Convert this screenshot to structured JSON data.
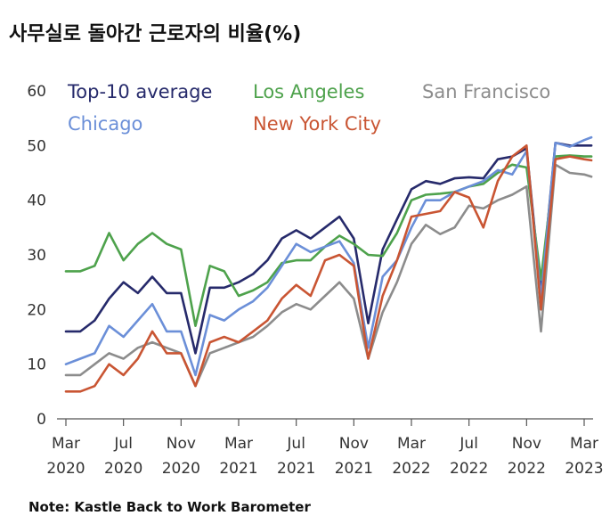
{
  "title": "사무실로 돌아간 근로자의 비율(%)",
  "note": "Note: Kastle Back to Work Barometer",
  "chart_data": {
    "type": "line",
    "title": "사무실로 돌아간 근로자의 비율(%)",
    "xlabel": "",
    "ylabel": "",
    "ylim": [
      0,
      60
    ],
    "yticks": [
      "0",
      "10",
      "20",
      "30",
      "40",
      "50",
      "60"
    ],
    "xticks": [
      {
        "line1": "Mar",
        "line2": "2020",
        "index": 0
      },
      {
        "line1": "Jul",
        "line2": "2020",
        "index": 4
      },
      {
        "line1": "Nov",
        "line2": "2020",
        "index": 8
      },
      {
        "line1": "Mar",
        "line2": "2021",
        "index": 12
      },
      {
        "line1": "Jul",
        "line2": "2021",
        "index": 16
      },
      {
        "line1": "Nov",
        "line2": "2021",
        "index": 20
      },
      {
        "line1": "Mar",
        "line2": "2022",
        "index": 24
      },
      {
        "line1": "Jul",
        "line2": "2022",
        "index": 28
      },
      {
        "line1": "Nov",
        "line2": "2022",
        "index": 32
      },
      {
        "line1": "Mar",
        "line2": "2023",
        "index": 36
      }
    ],
    "x_index_max": 36,
    "series": [
      {
        "name": "Top-10 average",
        "color": "#262a6b",
        "points": [
          [
            0,
            16
          ],
          [
            1,
            16
          ],
          [
            2,
            18
          ],
          [
            3,
            22
          ],
          [
            4,
            25
          ],
          [
            5,
            23
          ],
          [
            6,
            26
          ],
          [
            7,
            23
          ],
          [
            8,
            23
          ],
          [
            9,
            12
          ],
          [
            10,
            24
          ],
          [
            11,
            24
          ],
          [
            12,
            25
          ],
          [
            13,
            26.5
          ],
          [
            14,
            29
          ],
          [
            15,
            33
          ],
          [
            16,
            34.5
          ],
          [
            17,
            33
          ],
          [
            18,
            35
          ],
          [
            19,
            37
          ],
          [
            20,
            33
          ],
          [
            21,
            17.5
          ],
          [
            22,
            31
          ],
          [
            23,
            36.5
          ],
          [
            24,
            42
          ],
          [
            25,
            43.5
          ],
          [
            26,
            43
          ],
          [
            27,
            44
          ],
          [
            28,
            44.2
          ],
          [
            29,
            44
          ],
          [
            30,
            47.5
          ],
          [
            31,
            48
          ],
          [
            32,
            49.5
          ],
          [
            33,
            23
          ],
          [
            34,
            50.5
          ],
          [
            35,
            50
          ],
          [
            36,
            50
          ],
          [
            36.5,
            50
          ]
        ]
      },
      {
        "name": "Los Angeles",
        "color": "#4ea24c",
        "points": [
          [
            0,
            27
          ],
          [
            1,
            27
          ],
          [
            2,
            28
          ],
          [
            3,
            34
          ],
          [
            4,
            29
          ],
          [
            5,
            32
          ],
          [
            6,
            34
          ],
          [
            7,
            32
          ],
          [
            8,
            31
          ],
          [
            9,
            17
          ],
          [
            10,
            28
          ],
          [
            11,
            27
          ],
          [
            12,
            22.5
          ],
          [
            13,
            23.5
          ],
          [
            14,
            25
          ],
          [
            15,
            28.5
          ],
          [
            16,
            29
          ],
          [
            17,
            29
          ],
          [
            18,
            31.5
          ],
          [
            19,
            33.5
          ],
          [
            20,
            32
          ],
          [
            21,
            30
          ],
          [
            22,
            29.8
          ],
          [
            23,
            34
          ],
          [
            24,
            40
          ],
          [
            25,
            41
          ],
          [
            26,
            41.2
          ],
          [
            27,
            41.5
          ],
          [
            28,
            42.5
          ],
          [
            29,
            43
          ],
          [
            30,
            45
          ],
          [
            31,
            46.5
          ],
          [
            32,
            46
          ],
          [
            33,
            25.5
          ],
          [
            34,
            48
          ],
          [
            35,
            48.2
          ],
          [
            36,
            48
          ],
          [
            36.5,
            48
          ]
        ]
      },
      {
        "name": "San Francisco",
        "color": "#8c8c8c",
        "points": [
          [
            0,
            8
          ],
          [
            1,
            8
          ],
          [
            2,
            10
          ],
          [
            3,
            12
          ],
          [
            4,
            11
          ],
          [
            5,
            13
          ],
          [
            6,
            14
          ],
          [
            7,
            13
          ],
          [
            8,
            12
          ],
          [
            9,
            6
          ],
          [
            10,
            12
          ],
          [
            11,
            13
          ],
          [
            12,
            14
          ],
          [
            13,
            15
          ],
          [
            14,
            17
          ],
          [
            15,
            19.5
          ],
          [
            16,
            21
          ],
          [
            17,
            20
          ],
          [
            18,
            22.5
          ],
          [
            19,
            25
          ],
          [
            20,
            22
          ],
          [
            21,
            11
          ],
          [
            22,
            19.5
          ],
          [
            23,
            25
          ],
          [
            24,
            32
          ],
          [
            25,
            35.5
          ],
          [
            26,
            33.8
          ],
          [
            27,
            35
          ],
          [
            28,
            39
          ],
          [
            29,
            38.5
          ],
          [
            30,
            40
          ],
          [
            31,
            41
          ],
          [
            32,
            42.5
          ],
          [
            33,
            16
          ],
          [
            34,
            46.5
          ],
          [
            35,
            45
          ],
          [
            36,
            44.7
          ],
          [
            36.5,
            44.3
          ]
        ]
      },
      {
        "name": "Chicago",
        "color": "#6b8fd8",
        "points": [
          [
            0,
            10
          ],
          [
            1,
            11
          ],
          [
            2,
            12
          ],
          [
            3,
            17
          ],
          [
            4,
            15
          ],
          [
            5,
            18
          ],
          [
            6,
            21
          ],
          [
            7,
            16
          ],
          [
            8,
            16
          ],
          [
            9,
            8
          ],
          [
            10,
            19
          ],
          [
            11,
            18
          ],
          [
            12,
            20
          ],
          [
            13,
            21.5
          ],
          [
            14,
            24
          ],
          [
            15,
            28
          ],
          [
            16,
            32
          ],
          [
            17,
            30.5
          ],
          [
            18,
            31.5
          ],
          [
            19,
            32.5
          ],
          [
            20,
            28.5
          ],
          [
            21,
            13
          ],
          [
            22,
            26
          ],
          [
            23,
            29
          ],
          [
            24,
            35
          ],
          [
            25,
            40
          ],
          [
            26,
            40
          ],
          [
            27,
            41.5
          ],
          [
            28,
            42.5
          ],
          [
            29,
            43.5
          ],
          [
            30,
            45.5
          ],
          [
            31,
            44.7
          ],
          [
            32,
            49
          ],
          [
            33,
            22
          ],
          [
            34,
            50.5
          ],
          [
            35,
            49.8
          ],
          [
            36,
            51
          ],
          [
            36.5,
            51.5
          ]
        ]
      },
      {
        "name": "New York City",
        "color": "#c95533",
        "points": [
          [
            0,
            5
          ],
          [
            1,
            5
          ],
          [
            2,
            6
          ],
          [
            3,
            10
          ],
          [
            4,
            8
          ],
          [
            5,
            11
          ],
          [
            6,
            16
          ],
          [
            7,
            12
          ],
          [
            8,
            12
          ],
          [
            9,
            6
          ],
          [
            10,
            14
          ],
          [
            11,
            15
          ],
          [
            12,
            14
          ],
          [
            13,
            16
          ],
          [
            14,
            18
          ],
          [
            15,
            22
          ],
          [
            16,
            24.5
          ],
          [
            17,
            22.5
          ],
          [
            18,
            29
          ],
          [
            19,
            30
          ],
          [
            20,
            28
          ],
          [
            21,
            11
          ],
          [
            22,
            22.5
          ],
          [
            23,
            29
          ],
          [
            24,
            37
          ],
          [
            25,
            37.5
          ],
          [
            26,
            38
          ],
          [
            27,
            41.5
          ],
          [
            28,
            40.5
          ],
          [
            29,
            35
          ],
          [
            30,
            43.5
          ],
          [
            31,
            48
          ],
          [
            32,
            50
          ],
          [
            33,
            20
          ],
          [
            34,
            47.5
          ],
          [
            35,
            48
          ],
          [
            36,
            47.5
          ],
          [
            36.5,
            47.3
          ]
        ]
      }
    ],
    "legend": [
      {
        "label": "Top-10 average",
        "color": "#262a6b"
      },
      {
        "label": "Los Angeles",
        "color": "#4ea24c"
      },
      {
        "label": "San Francisco",
        "color": "#8c8c8c"
      },
      {
        "label": "Chicago",
        "color": "#6b8fd8"
      },
      {
        "label": "New York City",
        "color": "#c95533"
      }
    ],
    "legend_position": "top",
    "grid": false
  }
}
